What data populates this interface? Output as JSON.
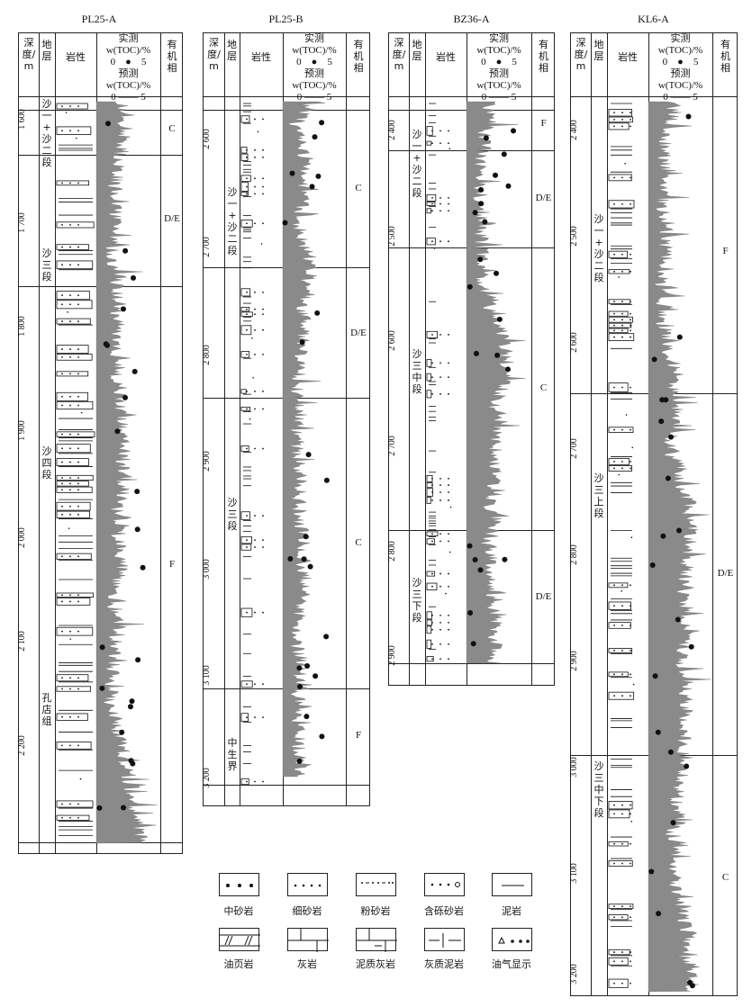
{
  "header": {
    "depth": "深\n度/\nm",
    "strata": "地\n层",
    "lithology": "岩性",
    "measured": "实测",
    "toc": "w(TOC)/%",
    "predicted": "预测",
    "scale_min": "0",
    "scale_max": "5",
    "facies": "有\n机\n相"
  },
  "wells": [
    {
      "name": "PL25-A",
      "depth_ticks": [
        "1 600",
        "1 700",
        "1 800",
        "1 900",
        "2 000",
        "2 100",
        "2 200"
      ],
      "formations": [
        "沙\n一\n+\n沙\n二\n段",
        "沙\n三\n段",
        "沙\n四\n段",
        "孔\n店\n组"
      ],
      "facies": [
        "C",
        "D/E",
        "F"
      ]
    },
    {
      "name": "PL25-B",
      "depth_ticks": [
        "2 600",
        "2 700",
        "2 800",
        "2 900",
        "3 000",
        "3 100",
        "3 200"
      ],
      "formations": [
        "沙\n一\n+\n沙\n二\n段",
        "沙\n三\n段",
        "中\n生\n界"
      ],
      "facies": [
        "C",
        "D/E",
        "C",
        "F"
      ]
    },
    {
      "name": "BZ36-A",
      "depth_ticks": [
        "2 400",
        "2 500",
        "2 600",
        "2 700",
        "2 800",
        "2 900"
      ],
      "formations": [
        "沙\n一\n+\n沙\n二\n段",
        "沙\n三\n中\n段",
        "沙\n三\n下\n段"
      ],
      "facies": [
        "F",
        "D/E",
        "C",
        "D/E"
      ]
    },
    {
      "name": "KL6-A",
      "depth_ticks": [
        "2 400",
        "2 500",
        "2 600",
        "2 700",
        "2 800",
        "2 900",
        "3 000",
        "3 100",
        "3 200"
      ],
      "formations": [
        "沙\n一\n+\n沙\n二\n段",
        "沙\n三\n上\n段",
        "沙\n三\n中\n下\n段"
      ],
      "facies": [
        "F",
        "D/E",
        "C"
      ]
    }
  ],
  "legend": [
    {
      "label": "中砂岩",
      "pattern": "medium-sandstone"
    },
    {
      "label": "细砂岩",
      "pattern": "fine-sandstone"
    },
    {
      "label": "粉砂岩",
      "pattern": "siltstone"
    },
    {
      "label": "含砾砂岩",
      "pattern": "pebbly-sandstone"
    },
    {
      "label": "泥岩",
      "pattern": "mudstone"
    },
    {
      "label": "油页岩",
      "pattern": "oil-shale"
    },
    {
      "label": "灰岩",
      "pattern": "limestone"
    },
    {
      "label": "泥质灰岩",
      "pattern": "argillaceous-limestone"
    },
    {
      "label": "灰质泥岩",
      "pattern": "calcareous-mudstone"
    },
    {
      "label": "油气显示",
      "pattern": "oil-gas-show"
    }
  ],
  "colors": {
    "log_fill": "#8a8a8a",
    "ink": "#111111"
  }
}
